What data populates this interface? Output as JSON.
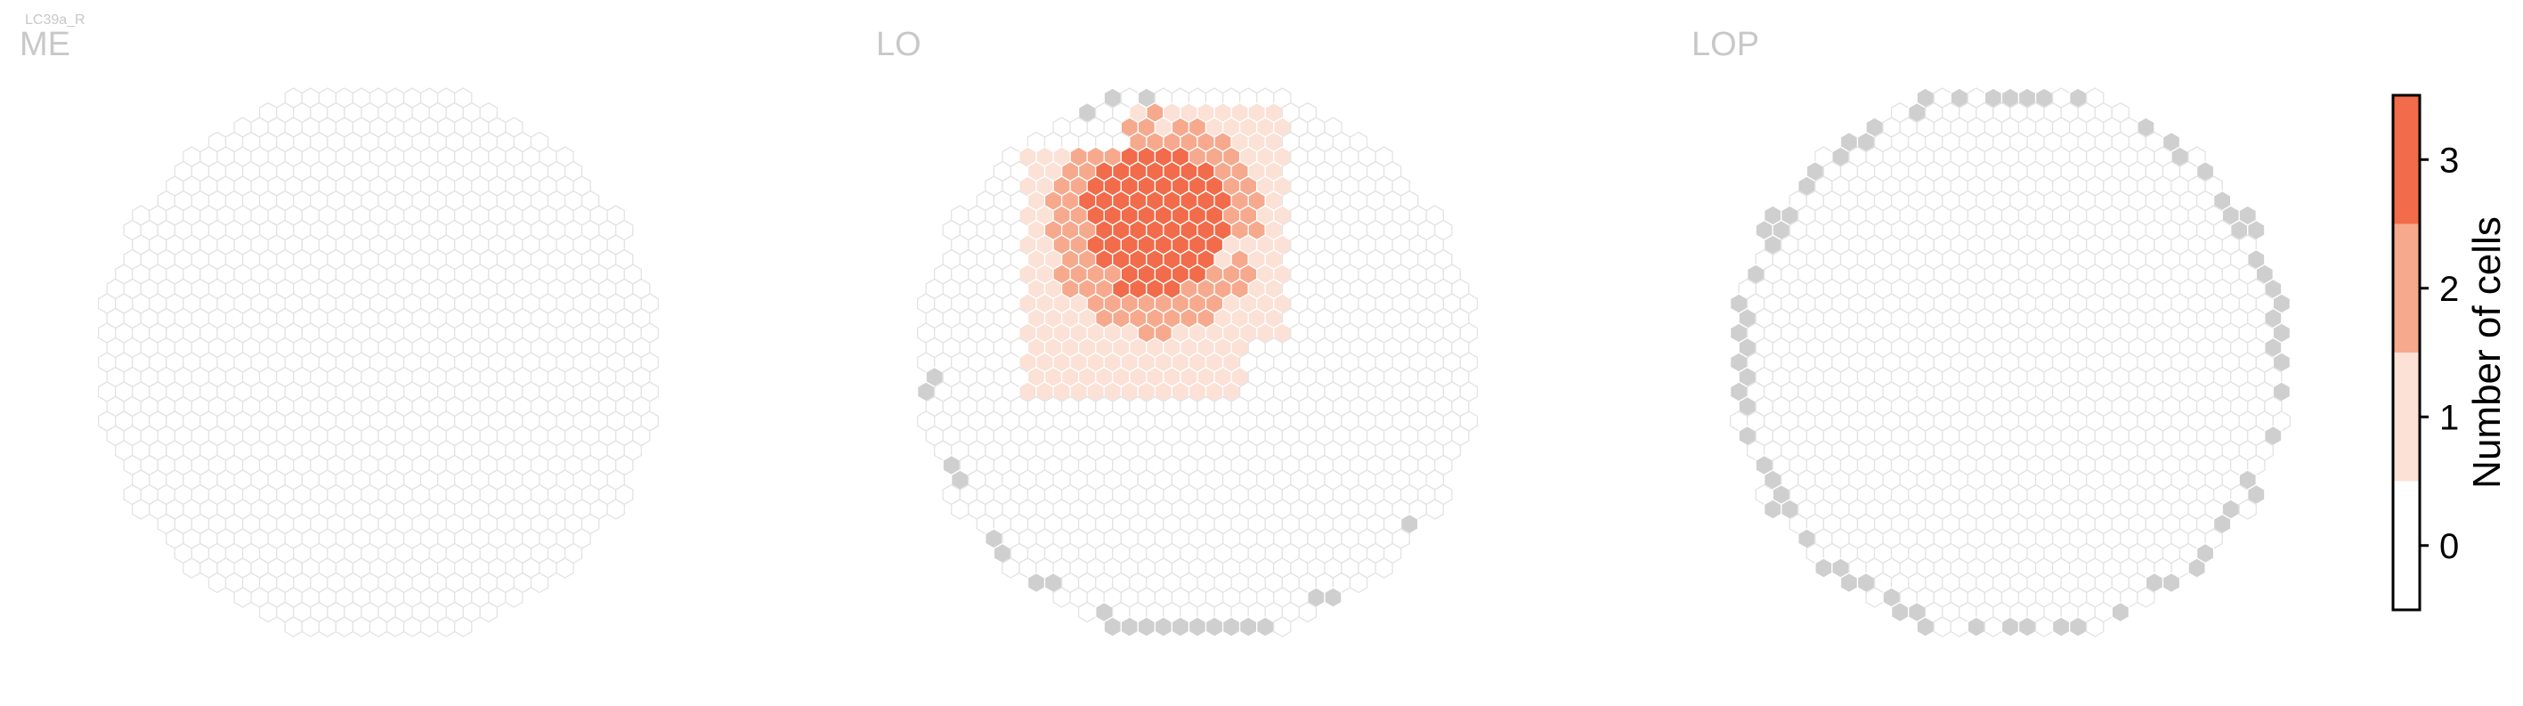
{
  "chart_data": {
    "type": "heatmap",
    "title": "LC39a_R",
    "panels": [
      {
        "label": "ME",
        "shape": "full-disc",
        "colored": [],
        "gray": []
      },
      {
        "label": "LO",
        "shape": "full-disc",
        "colored": [
          {
            "v": 1,
            "c": [
              -6.0,
              -0.9
            ]
          },
          {
            "v": 2,
            "c": [
              -3.4,
              3.7
            ]
          },
          {
            "v": 3,
            "c": [
              -1.2,
              1.3
            ]
          },
          {
            "v": 1,
            "c": [
              -8.1,
              0.0
            ]
          },
          {
            "v": 2,
            "c": [
              -5.5,
              2.8
            ]
          },
          {
            "v": 1,
            "c": [
              -9.2,
              -4.0
            ]
          },
          {
            "v": 3,
            "c": [
              -1.8,
              3.1
            ]
          },
          {
            "v": 2,
            "c": [
              1.8,
              2.6
            ]
          },
          {
            "v": 1,
            "c": [
              -3.2,
              -2.0
            ]
          },
          {
            "v": 3,
            "c": [
              0.4,
              1.7
            ]
          },
          {
            "v": 1,
            "c": [
              3.5,
              -3.0
            ]
          },
          {
            "v": 2,
            "c": [
              -7.3,
              1.6
            ]
          },
          {
            "v": 3,
            "c": [
              -2.6,
              0.4
            ]
          },
          {
            "v": 1,
            "c": [
              2.1,
              -1.2
            ]
          },
          {
            "v": 2,
            "c": [
              0.9,
              4.3
            ]
          }
        ],
        "gray": [
          {
            "a": 101
          },
          {
            "a": 107
          },
          {
            "a": 114
          },
          {
            "a": 185
          },
          {
            "a": 205
          },
          {
            "a": 222
          },
          {
            "a": 236
          },
          {
            "a": 252
          },
          {
            "a": 258
          },
          {
            "a": 263
          },
          {
            "a": 268
          },
          {
            "a": 272
          },
          {
            "a": 276
          },
          {
            "a": 283
          },
          {
            "a": 298
          },
          {
            "a": 322
          }
        ]
      },
      {
        "label": "LOP",
        "shape": "full-disc",
        "colored": [],
        "gray": [
          {
            "a": 2
          },
          {
            "a": 6
          },
          {
            "a": 11
          },
          {
            "a": 17
          },
          {
            "a": 22
          },
          {
            "a": 30
          },
          {
            "a": 36
          },
          {
            "a": 44
          },
          {
            "a": 52
          },
          {
            "a": 60
          },
          {
            "a": 76
          },
          {
            "a": 85
          },
          {
            "a": 92
          },
          {
            "a": 100
          },
          {
            "a": 108
          },
          {
            "a": 122
          },
          {
            "a": 128
          },
          {
            "a": 135
          },
          {
            "a": 140
          },
          {
            "a": 146
          },
          {
            "a": 152
          },
          {
            "a": 160
          },
          {
            "a": 168
          },
          {
            "a": 176
          },
          {
            "a": 182
          },
          {
            "a": 188
          },
          {
            "a": 196
          },
          {
            "a": 204
          },
          {
            "a": 212
          },
          {
            "a": 220
          },
          {
            "a": 228
          },
          {
            "a": 236
          },
          {
            "a": 244
          },
          {
            "a": 252
          },
          {
            "a": 262
          },
          {
            "a": 272
          },
          {
            "a": 282
          },
          {
            "a": 294
          },
          {
            "a": 304
          },
          {
            "a": 314
          },
          {
            "a": 324
          },
          {
            "a": 334
          },
          {
            "a": 344
          },
          {
            "a": 354
          }
        ]
      }
    ],
    "lo_core_blob": true,
    "colorbar": {
      "label": "Number of cells",
      "ticks": [
        "0",
        "1",
        "2",
        "3"
      ],
      "range": [
        -0.5,
        3.5
      ],
      "colors": [
        "#ffffff",
        "#fbe1d6",
        "#f7a98d",
        "#f26b4a"
      ]
    },
    "colors": {
      "empty_fill": "#ffffff",
      "empty_stroke": "#e3e3e3",
      "gray_fill": "#cfcfcf",
      "value_1": "#fbe1d6",
      "value_2": "#f7a98d",
      "value_3": "#f26b4a"
    }
  }
}
